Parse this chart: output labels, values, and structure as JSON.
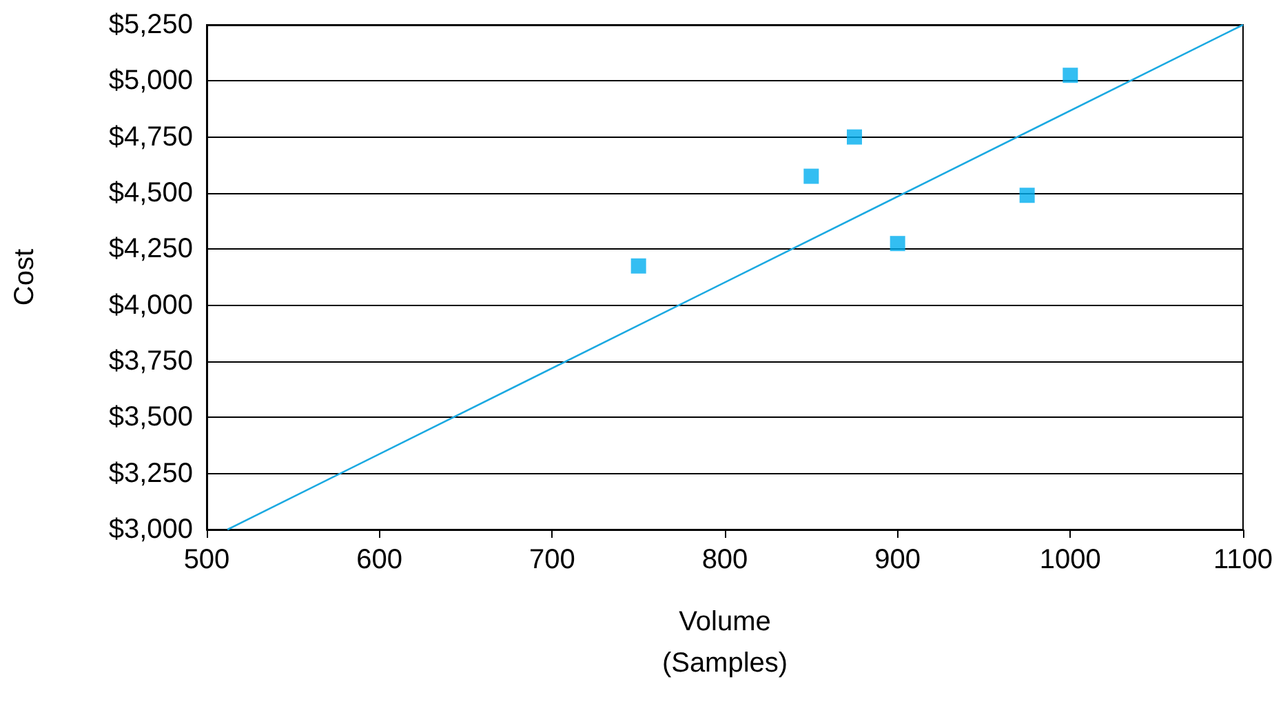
{
  "chart_data": {
    "type": "scatter",
    "xlabel": "Volume\n(Samples)",
    "ylabel": "Cost",
    "marker": "square",
    "grid": "y",
    "x": [
      750,
      850,
      875,
      900,
      975,
      1000
    ],
    "series": [
      {
        "color": "#00aeef",
        "values": [
          4175,
          4575,
          4750,
          4275,
          4490,
          5025
        ]
      },
      {
        "type": "line",
        "color": "#1ba9e1",
        "x": [
          512,
          1100
        ],
        "values": [
          3000,
          5250
        ],
        "marker": "none",
        "line_style": "solid"
      }
    ],
    "xlim": [
      500,
      1100
    ],
    "xticks": [
      500,
      600,
      700,
      800,
      900,
      1000,
      1100
    ],
    "ylim": [
      3000,
      5250
    ],
    "yticks": [
      {
        "value": 3000,
        "label": "$3,000"
      },
      {
        "value": 3250,
        "label": "$3,250"
      },
      {
        "value": 3500,
        "label": "$3,500"
      },
      {
        "value": 3750,
        "label": "$3,750"
      },
      {
        "value": 4000,
        "label": "$4,000"
      },
      {
        "value": 4250,
        "label": "$4,250"
      },
      {
        "value": 4500,
        "label": "$4,500"
      },
      {
        "value": 4750,
        "label": "$4,750"
      },
      {
        "value": 5000,
        "label": "$5,000"
      },
      {
        "value": 5250,
        "label": "$5,250"
      }
    ]
  }
}
